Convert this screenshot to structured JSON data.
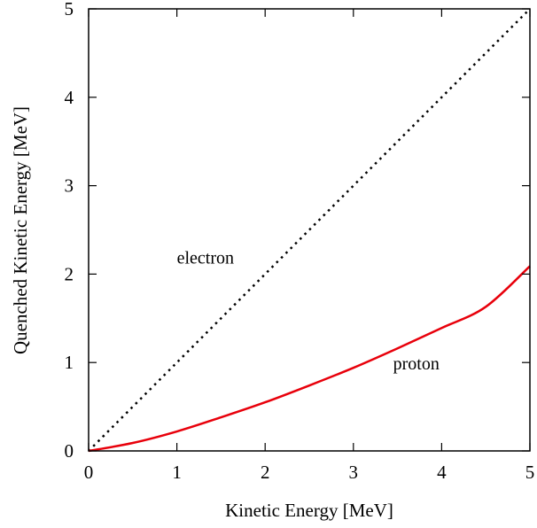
{
  "chart_data": {
    "type": "line",
    "xlabel": "Kinetic Energy [MeV]",
    "ylabel": "Quenched Kinetic Energy [MeV]",
    "xlim": [
      0,
      5
    ],
    "ylim": [
      0,
      5
    ],
    "xticks": [
      "0",
      "1",
      "2",
      "3",
      "4",
      "5"
    ],
    "yticks": [
      "0",
      "1",
      "2",
      "3",
      "4",
      "5"
    ],
    "grid": false,
    "series": [
      {
        "name": "electron",
        "style": "dotted",
        "color": "#000000",
        "x": [
          0,
          1,
          2,
          3,
          4,
          5
        ],
        "y": [
          0,
          1,
          2,
          3,
          4,
          5
        ]
      },
      {
        "name": "proton",
        "style": "solid",
        "color": "#e8000b",
        "x": [
          0,
          0.5,
          1,
          1.5,
          2,
          2.5,
          3,
          3.5,
          4,
          4.5,
          5
        ],
        "y": [
          0,
          0.09,
          0.22,
          0.38,
          0.55,
          0.74,
          0.94,
          1.16,
          1.39,
          1.63,
          2.09
        ]
      }
    ],
    "annotations": [
      {
        "text": "electron",
        "x": 1.0,
        "y": 2.12
      },
      {
        "text": "proton",
        "x": 3.45,
        "y": 0.92
      }
    ]
  }
}
